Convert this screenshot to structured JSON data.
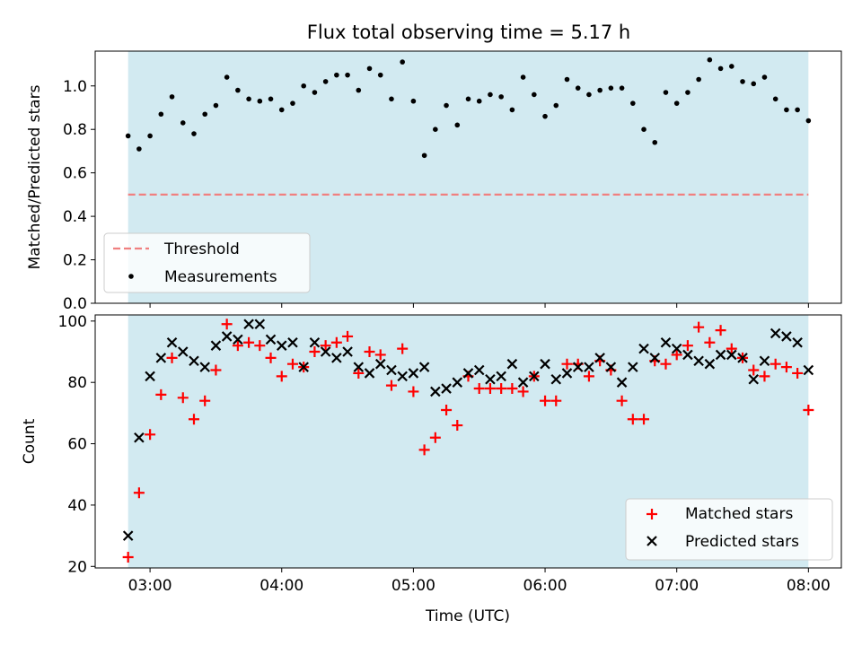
{
  "title": "Flux total observing time = 5.17 h",
  "colors": {
    "band": "#add8e6",
    "threshold": "#f08080",
    "measurements": "#000000",
    "matched": "#ff0000",
    "predicted": "#000000"
  },
  "chart_data": [
    {
      "type": "scatter",
      "ylabel": "Matched/Predicted stars",
      "ylim": [
        0,
        1.16
      ],
      "yticks": [
        0.0,
        0.2,
        0.4,
        0.6,
        0.8,
        1.0
      ],
      "ytick_labels": [
        "0.0",
        "0.2",
        "0.4",
        "0.6",
        "0.8",
        "1.0"
      ],
      "xlim": [
        "02:35",
        "08:15"
      ],
      "shaded_span": [
        "02:50",
        "08:00"
      ],
      "threshold": 0.5,
      "legend_position": "lower-left",
      "legend": {
        "threshold": "Threshold",
        "measurements": "Measurements"
      },
      "measurements": {
        "x": [
          "02:50",
          "02:55",
          "03:00",
          "03:05",
          "03:10",
          "03:15",
          "03:20",
          "03:25",
          "03:30",
          "03:35",
          "03:40",
          "03:45",
          "03:50",
          "03:55",
          "04:00",
          "04:05",
          "04:10",
          "04:15",
          "04:20",
          "04:25",
          "04:30",
          "04:35",
          "04:40",
          "04:45",
          "04:50",
          "04:55",
          "05:00",
          "05:05",
          "05:10",
          "05:15",
          "05:20",
          "05:25",
          "05:30",
          "05:35",
          "05:40",
          "05:45",
          "05:50",
          "05:55",
          "06:00",
          "06:05",
          "06:10",
          "06:15",
          "06:20",
          "06:25",
          "06:30",
          "06:35",
          "06:40",
          "06:45",
          "06:50",
          "06:55",
          "07:00",
          "07:05",
          "07:10",
          "07:15",
          "07:20",
          "07:25",
          "07:30",
          "07:35",
          "07:40",
          "07:45",
          "07:50",
          "07:55",
          "08:00"
        ],
        "y": [
          0.77,
          0.71,
          0.77,
          0.87,
          0.95,
          0.83,
          0.78,
          0.87,
          0.91,
          1.04,
          0.98,
          0.94,
          0.93,
          0.94,
          0.89,
          0.92,
          1.0,
          0.97,
          1.02,
          1.05,
          1.05,
          0.98,
          1.08,
          1.05,
          0.94,
          1.11,
          0.93,
          0.68,
          0.8,
          0.91,
          0.82,
          0.94,
          0.93,
          0.96,
          0.95,
          0.89,
          1.04,
          0.96,
          0.86,
          0.91,
          1.03,
          0.99,
          0.96,
          0.98,
          0.99,
          0.99,
          0.92,
          0.8,
          0.74,
          0.97,
          0.92,
          0.97,
          1.03,
          1.12,
          1.08,
          1.09,
          1.02,
          1.01,
          1.04,
          0.94,
          0.89,
          0.89,
          0.84
        ]
      }
    },
    {
      "type": "scatter",
      "xlabel": "Time (UTC)",
      "ylabel": "Count",
      "ylim": [
        19.5,
        102
      ],
      "yticks": [
        20,
        40,
        60,
        80,
        100
      ],
      "ytick_labels": [
        "20",
        "40",
        "60",
        "80",
        "100"
      ],
      "xlim": [
        "02:35",
        "08:15"
      ],
      "xticks": [
        "03:00",
        "04:00",
        "05:00",
        "06:00",
        "07:00",
        "08:00"
      ],
      "xtick_labels": [
        "03:00",
        "04:00",
        "05:00",
        "06:00",
        "07:00",
        "08:00"
      ],
      "shaded_span": [
        "02:50",
        "08:00"
      ],
      "legend_position": "lower-right",
      "series": [
        {
          "name": "Matched stars",
          "marker": "plus",
          "x": [
            "02:50",
            "02:55",
            "03:00",
            "03:05",
            "03:10",
            "03:15",
            "03:20",
            "03:25",
            "03:30",
            "03:35",
            "03:40",
            "03:45",
            "03:50",
            "03:55",
            "04:00",
            "04:05",
            "04:10",
            "04:15",
            "04:20",
            "04:25",
            "04:30",
            "04:35",
            "04:40",
            "04:45",
            "04:50",
            "04:55",
            "05:00",
            "05:05",
            "05:10",
            "05:15",
            "05:20",
            "05:25",
            "05:30",
            "05:35",
            "05:40",
            "05:45",
            "05:50",
            "05:55",
            "06:00",
            "06:05",
            "06:10",
            "06:15",
            "06:20",
            "06:25",
            "06:30",
            "06:35",
            "06:40",
            "06:45",
            "06:50",
            "06:55",
            "07:00",
            "07:05",
            "07:10",
            "07:15",
            "07:20",
            "07:25",
            "07:30",
            "07:35",
            "07:40",
            "07:45",
            "07:50",
            "07:55",
            "08:00"
          ],
          "y": [
            23,
            44,
            63,
            76,
            88,
            75,
            68,
            74,
            84,
            99,
            92,
            93,
            92,
            88,
            82,
            86,
            85,
            90,
            92,
            93,
            95,
            83,
            90,
            89,
            79,
            91,
            77,
            58,
            62,
            71,
            66,
            82,
            78,
            78,
            78,
            78,
            77,
            82,
            74,
            74,
            86,
            86,
            82,
            87,
            84,
            74,
            68,
            68,
            87,
            86,
            89,
            92,
            98,
            93,
            97,
            91,
            88,
            84,
            82,
            86,
            85,
            83,
            71
          ]
        },
        {
          "name": "Predicted stars",
          "marker": "x",
          "x": [
            "02:50",
            "02:55",
            "03:00",
            "03:05",
            "03:10",
            "03:15",
            "03:20",
            "03:25",
            "03:30",
            "03:35",
            "03:40",
            "03:45",
            "03:50",
            "03:55",
            "04:00",
            "04:05",
            "04:10",
            "04:15",
            "04:20",
            "04:25",
            "04:30",
            "04:35",
            "04:40",
            "04:45",
            "04:50",
            "04:55",
            "05:00",
            "05:05",
            "05:10",
            "05:15",
            "05:20",
            "05:25",
            "05:30",
            "05:35",
            "05:40",
            "05:45",
            "05:50",
            "05:55",
            "06:00",
            "06:05",
            "06:10",
            "06:15",
            "06:20",
            "06:25",
            "06:30",
            "06:35",
            "06:40",
            "06:45",
            "06:50",
            "06:55",
            "07:00",
            "07:05",
            "07:10",
            "07:15",
            "07:20",
            "07:25",
            "07:30",
            "07:35",
            "07:40",
            "07:45",
            "07:50",
            "07:55",
            "08:00"
          ],
          "y": [
            30,
            62,
            82,
            88,
            93,
            90,
            87,
            85,
            92,
            95,
            94,
            99,
            99,
            94,
            92,
            93,
            85,
            93,
            90,
            88,
            90,
            85,
            83,
            86,
            84,
            82,
            83,
            85,
            77,
            78,
            80,
            83,
            84,
            81,
            82,
            86,
            80,
            82,
            86,
            81,
            83,
            85,
            85,
            88,
            85,
            80,
            85,
            91,
            88,
            93,
            91,
            89,
            87,
            86,
            89,
            89,
            88,
            81,
            87,
            96,
            95,
            93,
            84
          ]
        }
      ]
    }
  ]
}
